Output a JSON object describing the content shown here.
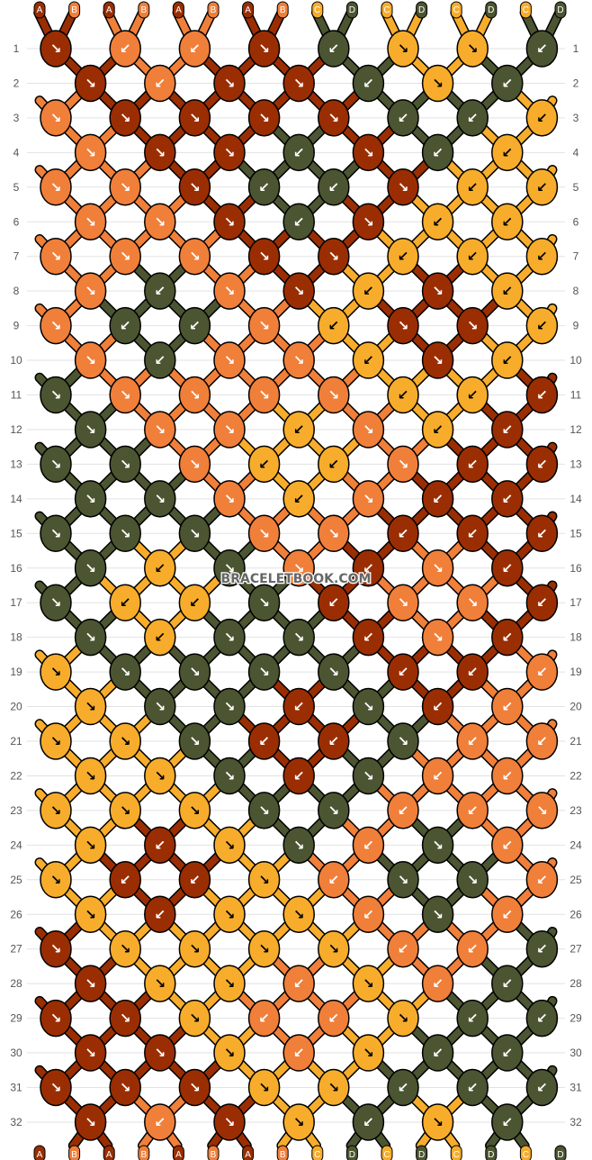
{
  "watermark": "BRACELETBOOK.COM",
  "strand_labels_top": [
    "A",
    "B",
    "A",
    "B",
    "A",
    "B",
    "A",
    "B",
    "C",
    "D",
    "C",
    "D",
    "C",
    "D",
    "C",
    "D"
  ],
  "strand_labels_bottom": [
    "A",
    "B",
    "A",
    "B",
    "A",
    "B",
    "A",
    "B",
    "C",
    "D",
    "C",
    "D",
    "C",
    "D",
    "C",
    "D"
  ],
  "colors": {
    "A": "#9a2e02",
    "B": "#f07f3a",
    "C": "#f7ad2b",
    "D": "#4b5531"
  },
  "row_numbers": [
    "1",
    "2",
    "3",
    "4",
    "5",
    "6",
    "7",
    "8",
    "9",
    "10",
    "11",
    "12",
    "13",
    "14",
    "15",
    "16",
    "17",
    "18",
    "19",
    "20",
    "21",
    "22",
    "23",
    "24",
    "25",
    "26",
    "27",
    "28",
    "29",
    "30",
    "31",
    "32"
  ],
  "knot_rows": [
    [
      {
        "c": "A",
        "d": "se"
      },
      {
        "c": "B",
        "d": "sw"
      },
      {
        "c": "B",
        "d": "sw"
      },
      {
        "c": "A",
        "d": "se"
      },
      {
        "c": "D",
        "d": "sw"
      },
      {
        "c": "C",
        "d": "se"
      },
      {
        "c": "C",
        "d": "se"
      },
      {
        "c": "D",
        "d": "sw"
      }
    ],
    [
      {
        "c": "A",
        "d": "se"
      },
      {
        "c": "B",
        "d": "sw"
      },
      {
        "c": "A",
        "d": "se"
      },
      {
        "c": "A",
        "d": "se"
      },
      {
        "c": "D",
        "d": "sw"
      },
      {
        "c": "C",
        "d": "se"
      },
      {
        "c": "D",
        "d": "sw"
      }
    ],
    [
      {
        "c": "B",
        "d": "se"
      },
      {
        "c": "A",
        "d": "se"
      },
      {
        "c": "A",
        "d": "se"
      },
      {
        "c": "A",
        "d": "se"
      },
      {
        "c": "A",
        "d": "se"
      },
      {
        "c": "D",
        "d": "sw"
      },
      {
        "c": "D",
        "d": "sw"
      },
      {
        "c": "C",
        "d": "sw"
      }
    ],
    [
      {
        "c": "B",
        "d": "se"
      },
      {
        "c": "A",
        "d": "se"
      },
      {
        "c": "A",
        "d": "se"
      },
      {
        "c": "D",
        "d": "sw"
      },
      {
        "c": "A",
        "d": "se"
      },
      {
        "c": "D",
        "d": "sw"
      },
      {
        "c": "C",
        "d": "sw"
      }
    ],
    [
      {
        "c": "B",
        "d": "se"
      },
      {
        "c": "B",
        "d": "se"
      },
      {
        "c": "A",
        "d": "se"
      },
      {
        "c": "D",
        "d": "sw"
      },
      {
        "c": "D",
        "d": "sw"
      },
      {
        "c": "A",
        "d": "se"
      },
      {
        "c": "C",
        "d": "sw"
      },
      {
        "c": "C",
        "d": "sw"
      }
    ],
    [
      {
        "c": "B",
        "d": "se"
      },
      {
        "c": "B",
        "d": "se"
      },
      {
        "c": "A",
        "d": "se"
      },
      {
        "c": "D",
        "d": "sw"
      },
      {
        "c": "A",
        "d": "se"
      },
      {
        "c": "C",
        "d": "sw"
      },
      {
        "c": "C",
        "d": "sw"
      }
    ],
    [
      {
        "c": "B",
        "d": "se"
      },
      {
        "c": "B",
        "d": "se"
      },
      {
        "c": "B",
        "d": "se"
      },
      {
        "c": "A",
        "d": "se"
      },
      {
        "c": "A",
        "d": "se"
      },
      {
        "c": "C",
        "d": "sw"
      },
      {
        "c": "C",
        "d": "sw"
      },
      {
        "c": "C",
        "d": "sw"
      }
    ],
    [
      {
        "c": "B",
        "d": "se"
      },
      {
        "c": "D",
        "d": "sw"
      },
      {
        "c": "B",
        "d": "se"
      },
      {
        "c": "A",
        "d": "se"
      },
      {
        "c": "C",
        "d": "sw"
      },
      {
        "c": "A",
        "d": "se"
      },
      {
        "c": "C",
        "d": "sw"
      }
    ],
    [
      {
        "c": "B",
        "d": "se"
      },
      {
        "c": "D",
        "d": "sw"
      },
      {
        "c": "D",
        "d": "sw"
      },
      {
        "c": "B",
        "d": "se"
      },
      {
        "c": "C",
        "d": "sw"
      },
      {
        "c": "A",
        "d": "se"
      },
      {
        "c": "A",
        "d": "se"
      },
      {
        "c": "C",
        "d": "sw"
      }
    ],
    [
      {
        "c": "B",
        "d": "se"
      },
      {
        "c": "D",
        "d": "sw"
      },
      {
        "c": "B",
        "d": "se"
      },
      {
        "c": "B",
        "d": "se"
      },
      {
        "c": "C",
        "d": "sw"
      },
      {
        "c": "A",
        "d": "se"
      },
      {
        "c": "C",
        "d": "sw"
      }
    ],
    [
      {
        "c": "D",
        "d": "se"
      },
      {
        "c": "B",
        "d": "se"
      },
      {
        "c": "B",
        "d": "se"
      },
      {
        "c": "B",
        "d": "se"
      },
      {
        "c": "B",
        "d": "se"
      },
      {
        "c": "C",
        "d": "sw"
      },
      {
        "c": "C",
        "d": "sw"
      },
      {
        "c": "A",
        "d": "sw"
      }
    ],
    [
      {
        "c": "D",
        "d": "se"
      },
      {
        "c": "B",
        "d": "se"
      },
      {
        "c": "B",
        "d": "se"
      },
      {
        "c": "C",
        "d": "sw"
      },
      {
        "c": "B",
        "d": "se"
      },
      {
        "c": "C",
        "d": "sw"
      },
      {
        "c": "A",
        "d": "sw"
      }
    ],
    [
      {
        "c": "D",
        "d": "se"
      },
      {
        "c": "D",
        "d": "se"
      },
      {
        "c": "B",
        "d": "se"
      },
      {
        "c": "C",
        "d": "sw"
      },
      {
        "c": "C",
        "d": "sw"
      },
      {
        "c": "B",
        "d": "se"
      },
      {
        "c": "A",
        "d": "sw"
      },
      {
        "c": "A",
        "d": "sw"
      }
    ],
    [
      {
        "c": "D",
        "d": "se"
      },
      {
        "c": "D",
        "d": "se"
      },
      {
        "c": "B",
        "d": "se"
      },
      {
        "c": "C",
        "d": "sw"
      },
      {
        "c": "B",
        "d": "se"
      },
      {
        "c": "A",
        "d": "sw"
      },
      {
        "c": "A",
        "d": "sw"
      }
    ],
    [
      {
        "c": "D",
        "d": "se"
      },
      {
        "c": "D",
        "d": "se"
      },
      {
        "c": "D",
        "d": "se"
      },
      {
        "c": "B",
        "d": "se"
      },
      {
        "c": "B",
        "d": "se"
      },
      {
        "c": "A",
        "d": "sw"
      },
      {
        "c": "A",
        "d": "sw"
      },
      {
        "c": "A",
        "d": "sw"
      }
    ],
    [
      {
        "c": "D",
        "d": "se"
      },
      {
        "c": "C",
        "d": "sw"
      },
      {
        "c": "D",
        "d": "se"
      },
      {
        "c": "B",
        "d": "se"
      },
      {
        "c": "A",
        "d": "sw"
      },
      {
        "c": "B",
        "d": "se"
      },
      {
        "c": "A",
        "d": "sw"
      }
    ],
    [
      {
        "c": "D",
        "d": "se"
      },
      {
        "c": "C",
        "d": "sw"
      },
      {
        "c": "C",
        "d": "sw"
      },
      {
        "c": "D",
        "d": "se"
      },
      {
        "c": "A",
        "d": "sw"
      },
      {
        "c": "B",
        "d": "se"
      },
      {
        "c": "B",
        "d": "se"
      },
      {
        "c": "A",
        "d": "sw"
      }
    ],
    [
      {
        "c": "D",
        "d": "se"
      },
      {
        "c": "C",
        "d": "sw"
      },
      {
        "c": "D",
        "d": "se"
      },
      {
        "c": "D",
        "d": "se"
      },
      {
        "c": "A",
        "d": "sw"
      },
      {
        "c": "B",
        "d": "se"
      },
      {
        "c": "A",
        "d": "sw"
      }
    ],
    [
      {
        "c": "C",
        "d": "se"
      },
      {
        "c": "D",
        "d": "se"
      },
      {
        "c": "D",
        "d": "se"
      },
      {
        "c": "D",
        "d": "se"
      },
      {
        "c": "D",
        "d": "se"
      },
      {
        "c": "A",
        "d": "sw"
      },
      {
        "c": "A",
        "d": "sw"
      },
      {
        "c": "B",
        "d": "sw"
      }
    ],
    [
      {
        "c": "C",
        "d": "se"
      },
      {
        "c": "D",
        "d": "se"
      },
      {
        "c": "D",
        "d": "se"
      },
      {
        "c": "A",
        "d": "sw"
      },
      {
        "c": "D",
        "d": "se"
      },
      {
        "c": "A",
        "d": "sw"
      },
      {
        "c": "B",
        "d": "sw"
      }
    ],
    [
      {
        "c": "C",
        "d": "se"
      },
      {
        "c": "C",
        "d": "se"
      },
      {
        "c": "D",
        "d": "se"
      },
      {
        "c": "A",
        "d": "sw"
      },
      {
        "c": "A",
        "d": "sw"
      },
      {
        "c": "D",
        "d": "se"
      },
      {
        "c": "B",
        "d": "sw"
      },
      {
        "c": "B",
        "d": "sw"
      }
    ],
    [
      {
        "c": "C",
        "d": "se"
      },
      {
        "c": "C",
        "d": "se"
      },
      {
        "c": "D",
        "d": "se"
      },
      {
        "c": "A",
        "d": "sw"
      },
      {
        "c": "D",
        "d": "se"
      },
      {
        "c": "B",
        "d": "sw"
      },
      {
        "c": "B",
        "d": "sw"
      }
    ],
    [
      {
        "c": "C",
        "d": "se"
      },
      {
        "c": "C",
        "d": "se"
      },
      {
        "c": "C",
        "d": "se"
      },
      {
        "c": "D",
        "d": "se"
      },
      {
        "c": "D",
        "d": "se"
      },
      {
        "c": "B",
        "d": "sw"
      },
      {
        "c": "B",
        "d": "sw"
      },
      {
        "c": "B",
        "d": "se"
      }
    ],
    [
      {
        "c": "C",
        "d": "se"
      },
      {
        "c": "A",
        "d": "sw"
      },
      {
        "c": "C",
        "d": "se"
      },
      {
        "c": "D",
        "d": "se"
      },
      {
        "c": "B",
        "d": "sw"
      },
      {
        "c": "D",
        "d": "se"
      },
      {
        "c": "B",
        "d": "sw"
      }
    ],
    [
      {
        "c": "C",
        "d": "se"
      },
      {
        "c": "A",
        "d": "sw"
      },
      {
        "c": "A",
        "d": "sw"
      },
      {
        "c": "C",
        "d": "se"
      },
      {
        "c": "B",
        "d": "sw"
      },
      {
        "c": "D",
        "d": "se"
      },
      {
        "c": "D",
        "d": "se"
      },
      {
        "c": "B",
        "d": "sw"
      }
    ],
    [
      {
        "c": "C",
        "d": "se"
      },
      {
        "c": "A",
        "d": "sw"
      },
      {
        "c": "C",
        "d": "se"
      },
      {
        "c": "C",
        "d": "se"
      },
      {
        "c": "B",
        "d": "sw"
      },
      {
        "c": "D",
        "d": "se"
      },
      {
        "c": "B",
        "d": "sw"
      }
    ],
    [
      {
        "c": "A",
        "d": "se"
      },
      {
        "c": "C",
        "d": "se"
      },
      {
        "c": "C",
        "d": "se"
      },
      {
        "c": "C",
        "d": "se"
      },
      {
        "c": "C",
        "d": "se"
      },
      {
        "c": "B",
        "d": "sw"
      },
      {
        "c": "B",
        "d": "sw"
      },
      {
        "c": "D",
        "d": "sw"
      }
    ],
    [
      {
        "c": "A",
        "d": "se"
      },
      {
        "c": "C",
        "d": "se"
      },
      {
        "c": "C",
        "d": "se"
      },
      {
        "c": "B",
        "d": "sw"
      },
      {
        "c": "C",
        "d": "se"
      },
      {
        "c": "B",
        "d": "sw"
      },
      {
        "c": "D",
        "d": "sw"
      }
    ],
    [
      {
        "c": "A",
        "d": "se"
      },
      {
        "c": "A",
        "d": "se"
      },
      {
        "c": "C",
        "d": "se"
      },
      {
        "c": "B",
        "d": "sw"
      },
      {
        "c": "B",
        "d": "sw"
      },
      {
        "c": "C",
        "d": "se"
      },
      {
        "c": "D",
        "d": "sw"
      },
      {
        "c": "D",
        "d": "sw"
      }
    ],
    [
      {
        "c": "A",
        "d": "se"
      },
      {
        "c": "A",
        "d": "se"
      },
      {
        "c": "C",
        "d": "se"
      },
      {
        "c": "B",
        "d": "sw"
      },
      {
        "c": "C",
        "d": "se"
      },
      {
        "c": "D",
        "d": "sw"
      },
      {
        "c": "D",
        "d": "sw"
      }
    ],
    [
      {
        "c": "A",
        "d": "se"
      },
      {
        "c": "A",
        "d": "se"
      },
      {
        "c": "A",
        "d": "se"
      },
      {
        "c": "C",
        "d": "se"
      },
      {
        "c": "C",
        "d": "se"
      },
      {
        "c": "D",
        "d": "sw"
      },
      {
        "c": "D",
        "d": "sw"
      },
      {
        "c": "D",
        "d": "sw"
      }
    ],
    [
      {
        "c": "A",
        "d": "se"
      },
      {
        "c": "B",
        "d": "sw"
      },
      {
        "c": "A",
        "d": "se"
      },
      {
        "c": "C",
        "d": "se"
      },
      {
        "c": "D",
        "d": "sw"
      },
      {
        "c": "C",
        "d": "se"
      },
      {
        "c": "D",
        "d": "sw"
      }
    ]
  ]
}
